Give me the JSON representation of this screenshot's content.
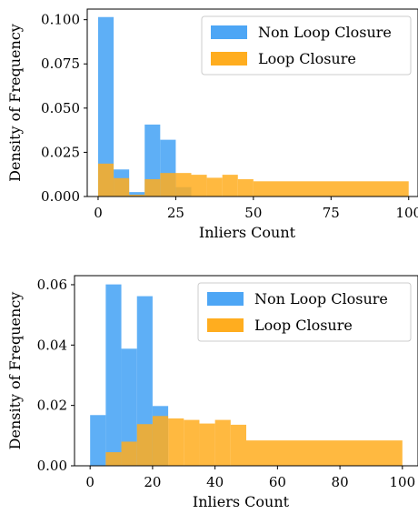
{
  "chart_data": [
    {
      "type": "histogram",
      "xlabel": "Inliers Count",
      "ylabel": "Density of Frequency",
      "xlim": [
        -3.5,
        103
      ],
      "ylim": [
        0,
        0.106
      ],
      "xticks": [
        0,
        25,
        50,
        75,
        100
      ],
      "yticks": [
        0.0,
        0.025,
        0.05,
        0.075,
        0.1
      ],
      "ytick_labels": [
        "0.000",
        "0.025",
        "0.050",
        "0.075",
        "0.100"
      ],
      "legend_position": "upper-right",
      "series": [
        {
          "name": "Non Loop Closure",
          "color": "#4da6f5",
          "bins": [
            {
              "x0": 0,
              "x1": 5,
              "value": 0.1015
            },
            {
              "x0": 5,
              "x1": 10,
              "value": 0.0153
            },
            {
              "x0": 10,
              "x1": 15,
              "value": 0.0025
            },
            {
              "x0": 15,
              "x1": 20,
              "value": 0.0407
            },
            {
              "x0": 20,
              "x1": 25,
              "value": 0.0321
            },
            {
              "x0": 25,
              "x1": 30,
              "value": 0.0053
            }
          ]
        },
        {
          "name": "Loop Closure",
          "color": "#ffad1f",
          "bins": [
            {
              "x0": 0,
              "x1": 5,
              "value": 0.0186
            },
            {
              "x0": 5,
              "x1": 10,
              "value": 0.0104
            },
            {
              "x0": 10,
              "x1": 15,
              "value": 0.001
            },
            {
              "x0": 15,
              "x1": 20,
              "value": 0.0098
            },
            {
              "x0": 20,
              "x1": 25,
              "value": 0.0133
            },
            {
              "x0": 25,
              "x1": 30,
              "value": 0.0133
            },
            {
              "x0": 30,
              "x1": 35,
              "value": 0.0123
            },
            {
              "x0": 35,
              "x1": 40,
              "value": 0.0106
            },
            {
              "x0": 40,
              "x1": 45,
              "value": 0.0123
            },
            {
              "x0": 45,
              "x1": 50,
              "value": 0.0098
            },
            {
              "x0": 50,
              "x1": 100,
              "value": 0.0086
            }
          ]
        }
      ]
    },
    {
      "type": "histogram",
      "xlabel": "Inliers Count",
      "ylabel": "Density of Frequency",
      "xlim": [
        -5,
        105
      ],
      "ylim": [
        0,
        0.063
      ],
      "xticks": [
        0,
        20,
        40,
        60,
        80,
        100
      ],
      "yticks": [
        0.0,
        0.02,
        0.04,
        0.06
      ],
      "ytick_labels": [
        "0.00",
        "0.02",
        "0.04",
        "0.06"
      ],
      "legend_position": "upper-right",
      "series": [
        {
          "name": "Non Loop Closure",
          "color": "#4da6f5",
          "bins": [
            {
              "x0": 0,
              "x1": 5,
              "value": 0.0168
            },
            {
              "x0": 5,
              "x1": 10,
              "value": 0.0601
            },
            {
              "x0": 10,
              "x1": 15,
              "value": 0.0388
            },
            {
              "x0": 15,
              "x1": 20,
              "value": 0.0562
            },
            {
              "x0": 20,
              "x1": 25,
              "value": 0.0198
            }
          ]
        },
        {
          "name": "Loop Closure",
          "color": "#ffad1f",
          "bins": [
            {
              "x0": 5,
              "x1": 10,
              "value": 0.0045
            },
            {
              "x0": 10,
              "x1": 15,
              "value": 0.008
            },
            {
              "x0": 15,
              "x1": 20,
              "value": 0.0138
            },
            {
              "x0": 20,
              "x1": 25,
              "value": 0.0165
            },
            {
              "x0": 25,
              "x1": 30,
              "value": 0.0157
            },
            {
              "x0": 30,
              "x1": 35,
              "value": 0.0152
            },
            {
              "x0": 35,
              "x1": 40,
              "value": 0.014
            },
            {
              "x0": 40,
              "x1": 45,
              "value": 0.0152
            },
            {
              "x0": 45,
              "x1": 50,
              "value": 0.0136
            },
            {
              "x0": 50,
              "x1": 100,
              "value": 0.0084
            }
          ]
        }
      ]
    }
  ]
}
